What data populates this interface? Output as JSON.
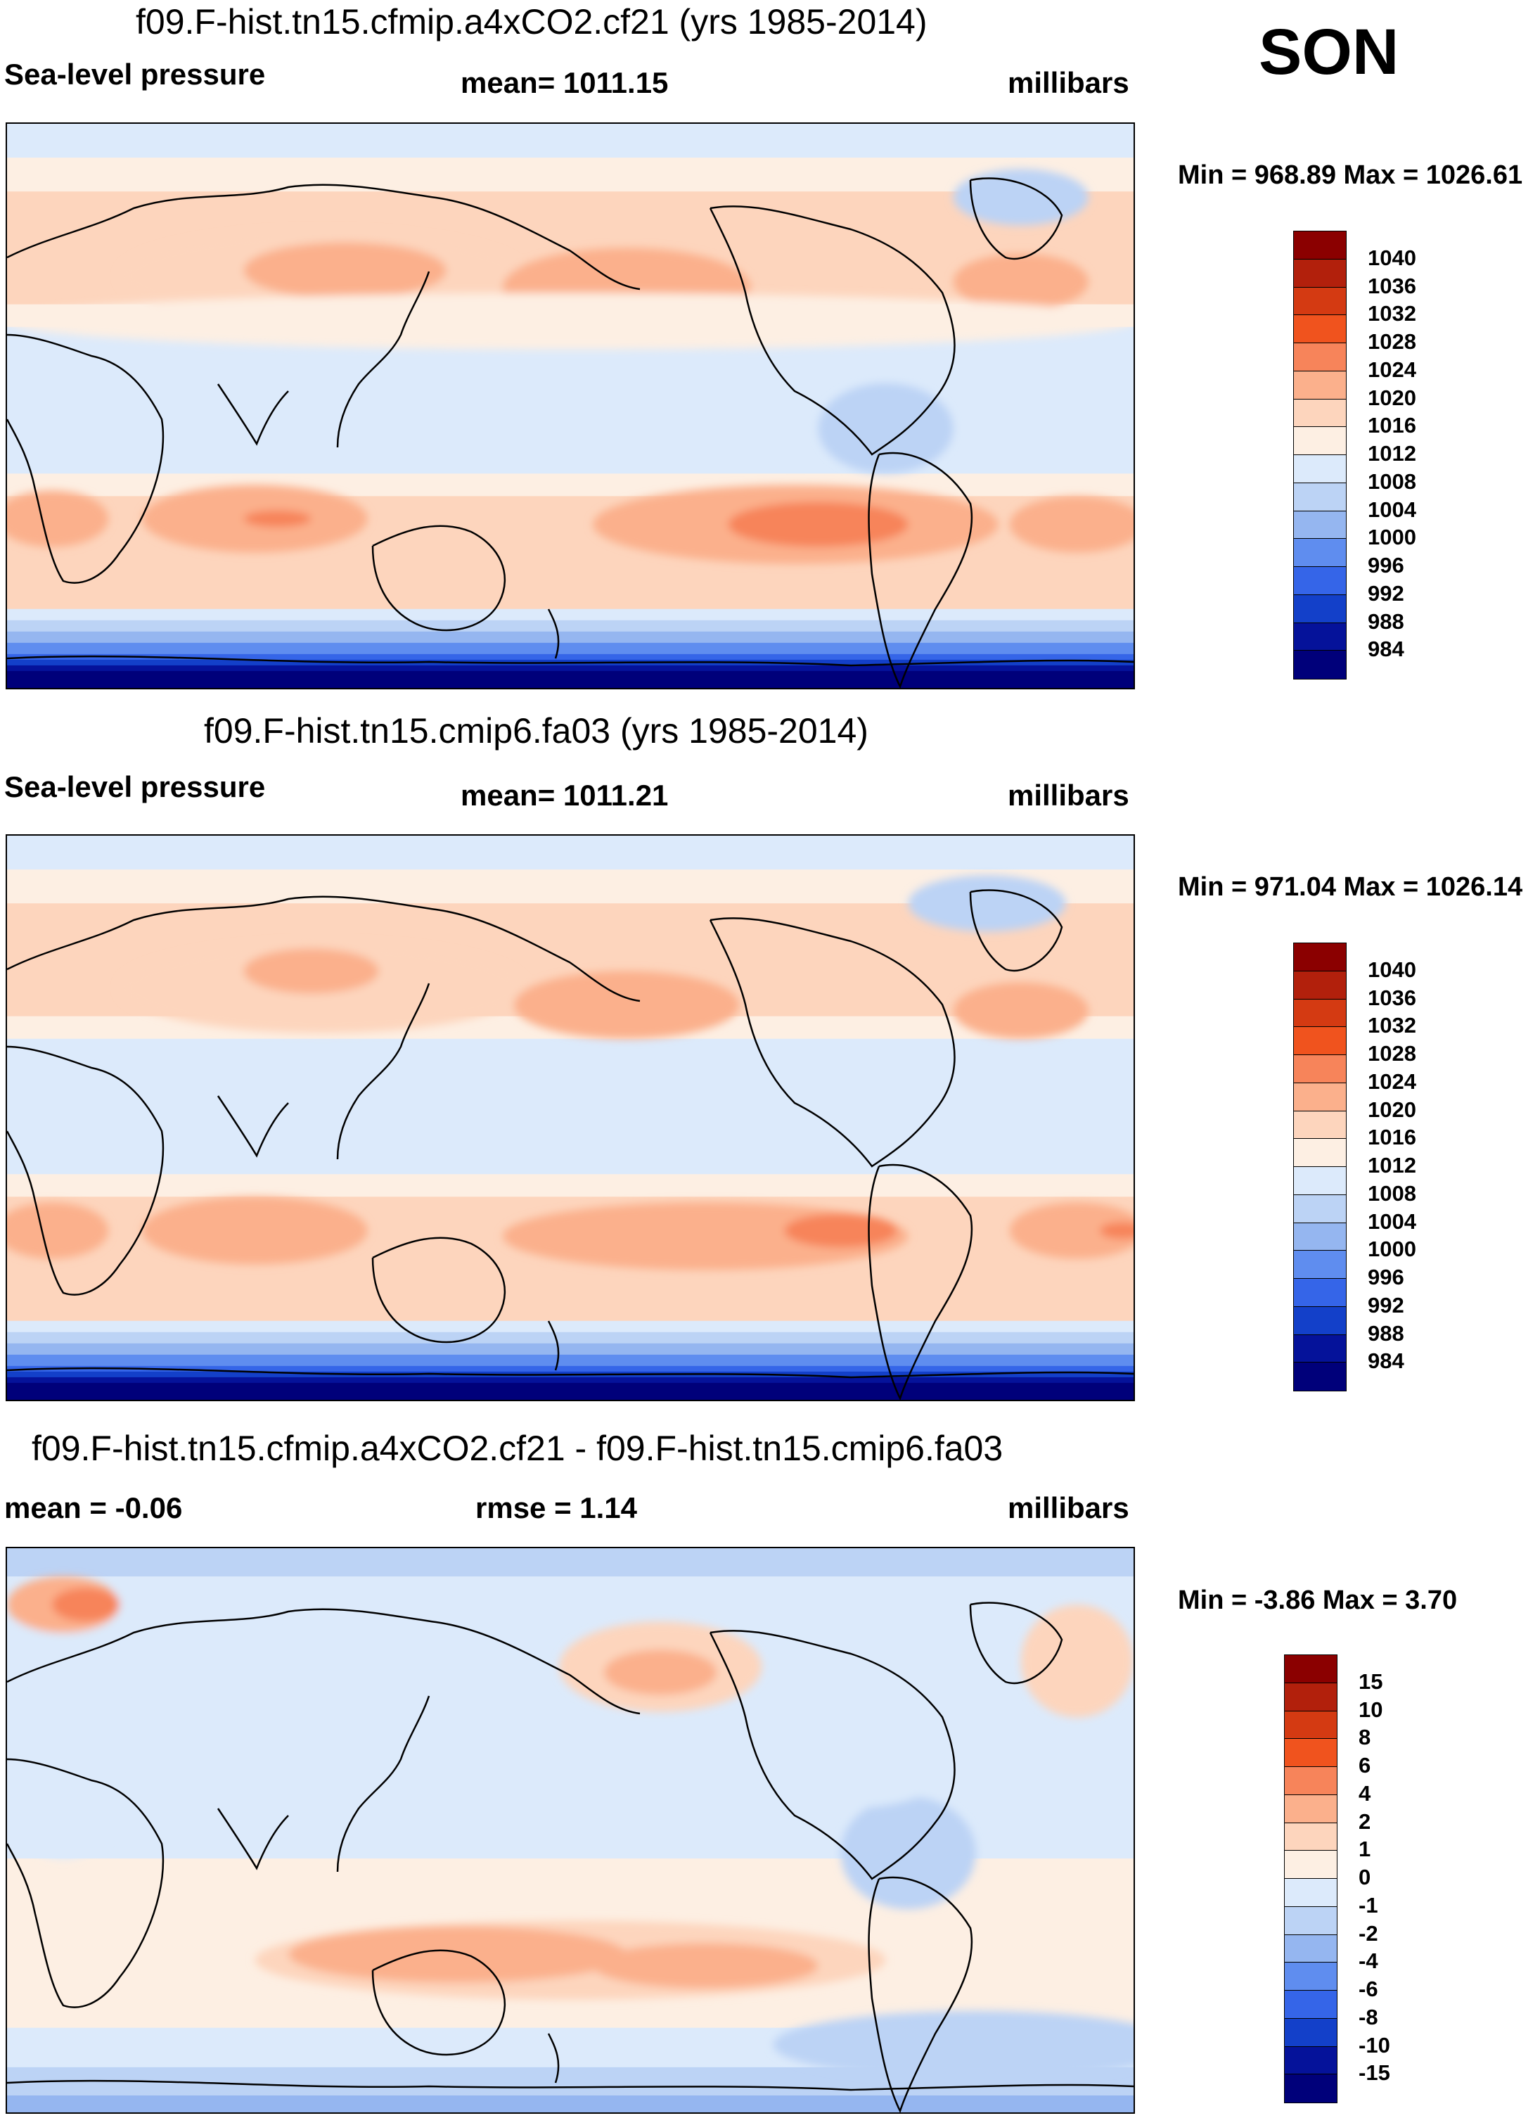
{
  "season": "SON",
  "panels": [
    {
      "title": "f09.F-hist.tn15.cfmip.a4xCO2.cf21 (yrs 1985-2014)",
      "left_label": "Sea-level pressure",
      "center_label": "mean= 1011.15",
      "units": "millibars",
      "minmax": "Min = 968.89 Max = 1026.61"
    },
    {
      "title": "f09.F-hist.tn15.cmip6.fa03 (yrs 1985-2014)",
      "left_label": "Sea-level pressure",
      "center_label": "mean= 1011.21",
      "units": "millibars",
      "minmax": "Min = 971.04 Max = 1026.14"
    },
    {
      "title": "f09.F-hist.tn15.cfmip.a4xCO2.cf21 - f09.F-hist.tn15.cmip6.fa03",
      "left_label": "mean =  -0.06",
      "center_label": "rmse =   1.14",
      "units": "millibars",
      "minmax": "Min =  -3.86 Max =   3.70"
    }
  ],
  "chart_data": [
    {
      "type": "heatmap",
      "title": "f09.F-hist.tn15.cfmip.a4xCO2.cf21 (yrs 1985-2014)",
      "variable": "Sea-level pressure",
      "units": "millibars",
      "mean": 1011.15,
      "min": 968.89,
      "max": 1026.61,
      "projection": "cylindrical equidistant, Pacific-centered",
      "contour_levels": [
        984,
        988,
        992,
        996,
        1000,
        1004,
        1008,
        1012,
        1016,
        1020,
        1024,
        1028,
        1032,
        1036,
        1040
      ],
      "colorbar_labels": [
        "1040",
        "1036",
        "1032",
        "1028",
        "1024",
        "1020",
        "1016",
        "1012",
        "1008",
        "1004",
        "1000",
        "996",
        "992",
        "988",
        "984"
      ],
      "colors": [
        "#8b0000",
        "#b2200c",
        "#d43a12",
        "#f0531e",
        "#f7845a",
        "#fbb08c",
        "#fdd5bd",
        "#fdefe3",
        "#dceafb",
        "#bcd3f5",
        "#95b6f0",
        "#5f8def",
        "#3565e8",
        "#1340c9",
        "#05129a",
        "#00007a"
      ]
    },
    {
      "type": "heatmap",
      "title": "f09.F-hist.tn15.cmip6.fa03 (yrs 1985-2014)",
      "variable": "Sea-level pressure",
      "units": "millibars",
      "mean": 1011.21,
      "min": 971.04,
      "max": 1026.14,
      "projection": "cylindrical equidistant, Pacific-centered",
      "contour_levels": [
        984,
        988,
        992,
        996,
        1000,
        1004,
        1008,
        1012,
        1016,
        1020,
        1024,
        1028,
        1032,
        1036,
        1040
      ],
      "colorbar_labels": [
        "1040",
        "1036",
        "1032",
        "1028",
        "1024",
        "1020",
        "1016",
        "1012",
        "1008",
        "1004",
        "1000",
        "996",
        "992",
        "988",
        "984"
      ],
      "colors": [
        "#8b0000",
        "#b2200c",
        "#d43a12",
        "#f0531e",
        "#f7845a",
        "#fbb08c",
        "#fdd5bd",
        "#fdefe3",
        "#dceafb",
        "#bcd3f5",
        "#95b6f0",
        "#5f8def",
        "#3565e8",
        "#1340c9",
        "#05129a",
        "#00007a"
      ]
    },
    {
      "type": "heatmap",
      "title": "f09.F-hist.tn15.cfmip.a4xCO2.cf21 - f09.F-hist.tn15.cmip6.fa03",
      "variable": "Sea-level pressure difference",
      "units": "millibars",
      "mean": -0.06,
      "rmse": 1.14,
      "min": -3.86,
      "max": 3.7,
      "projection": "cylindrical equidistant, Pacific-centered",
      "contour_levels": [
        -15,
        -10,
        -8,
        -6,
        -4,
        -2,
        -1,
        0,
        1,
        2,
        4,
        6,
        8,
        10,
        15
      ],
      "colorbar_labels": [
        "15",
        "10",
        "8",
        "6",
        "4",
        "2",
        "1",
        "0",
        "-1",
        "-2",
        "-4",
        "-6",
        "-8",
        "-10",
        "-15"
      ],
      "colors": [
        "#8b0000",
        "#b2200c",
        "#d43a12",
        "#f0531e",
        "#f7845a",
        "#fbb08c",
        "#fdd5bd",
        "#fdefe3",
        "#dceafb",
        "#bcd3f5",
        "#95b6f0",
        "#5f8def",
        "#3565e8",
        "#1340c9",
        "#05129a",
        "#00007a"
      ]
    }
  ]
}
